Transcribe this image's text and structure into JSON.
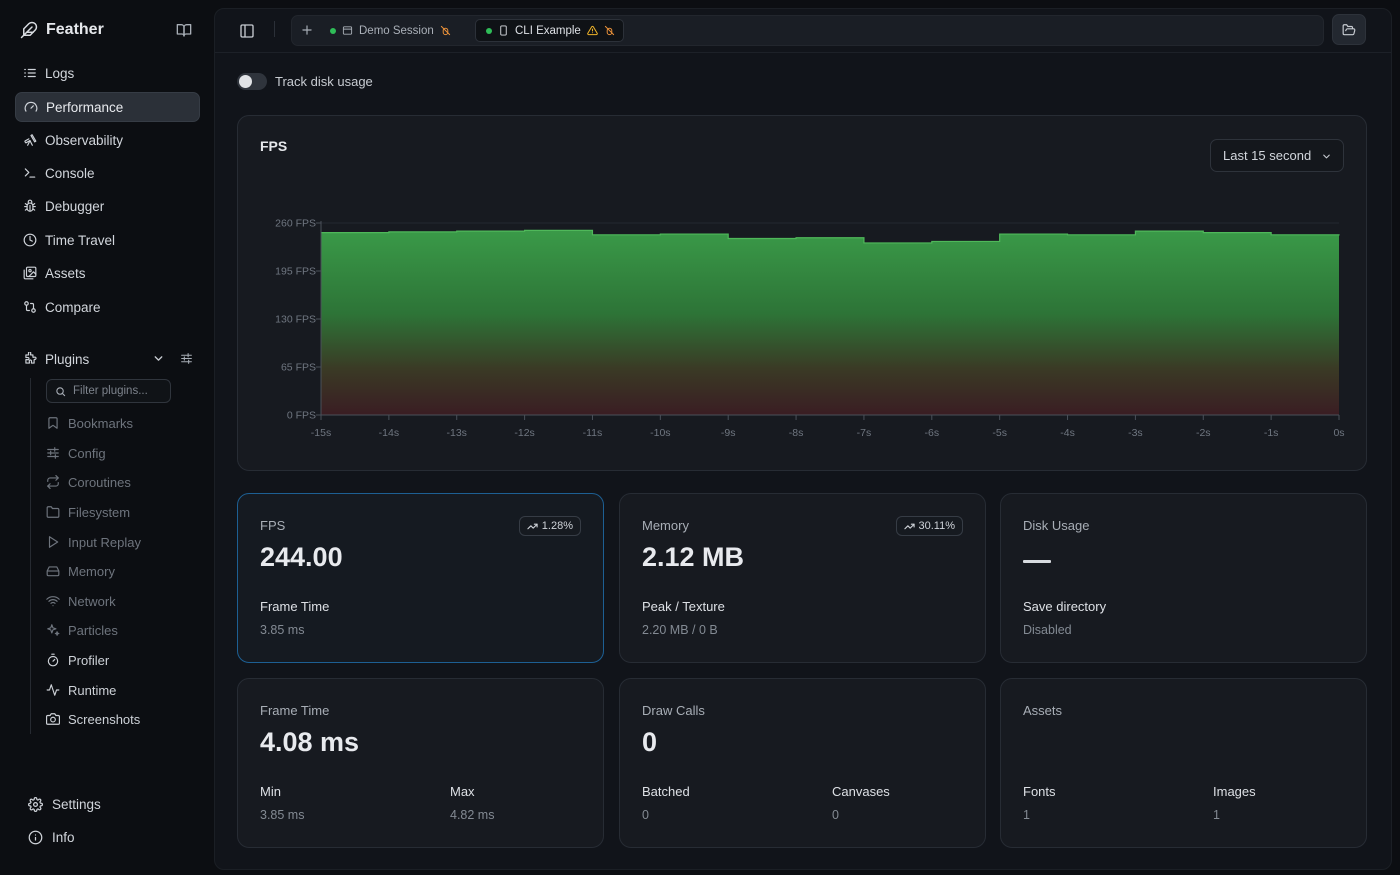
{
  "brand": {
    "name": "Feather"
  },
  "nav": [
    {
      "label": "Logs",
      "icon": "list-icon"
    },
    {
      "label": "Performance",
      "icon": "gauge-icon",
      "active": true
    },
    {
      "label": "Observability",
      "icon": "telescope-icon"
    },
    {
      "label": "Console",
      "icon": "terminal-icon"
    },
    {
      "label": "Debugger",
      "icon": "bug-icon"
    },
    {
      "label": "Time Travel",
      "icon": "clock-icon"
    },
    {
      "label": "Assets",
      "icon": "images-icon"
    },
    {
      "label": "Compare",
      "icon": "git-compare-icon"
    }
  ],
  "plugins": {
    "label": "Plugins",
    "filter_placeholder": "Filter plugins...",
    "items": [
      {
        "label": "Bookmarks",
        "icon": "bookmark-icon",
        "enabled": false
      },
      {
        "label": "Config",
        "icon": "sliders-icon",
        "enabled": false
      },
      {
        "label": "Coroutines",
        "icon": "repeat-icon",
        "enabled": false
      },
      {
        "label": "Filesystem",
        "icon": "folder-icon",
        "enabled": false
      },
      {
        "label": "Input Replay",
        "icon": "play-icon",
        "enabled": false
      },
      {
        "label": "Memory",
        "icon": "hard-drive-icon",
        "enabled": false
      },
      {
        "label": "Network",
        "icon": "wifi-icon",
        "enabled": false
      },
      {
        "label": "Particles",
        "icon": "sparkles-icon",
        "enabled": false
      },
      {
        "label": "Profiler",
        "icon": "timer-icon",
        "enabled": true
      },
      {
        "label": "Runtime",
        "icon": "activity-icon",
        "enabled": true
      },
      {
        "label": "Screenshots",
        "icon": "camera-icon",
        "enabled": true
      }
    ]
  },
  "footer": [
    {
      "label": "Settings",
      "icon": "gear-icon"
    },
    {
      "label": "Info",
      "icon": "info-icon"
    }
  ],
  "tabs": [
    {
      "label": "Demo Session",
      "icon": "window-icon",
      "status": "connected",
      "active": false
    },
    {
      "label": "CLI Example",
      "icon": "phone-icon",
      "status": "connected",
      "warning": true,
      "active": true
    }
  ],
  "toggle": {
    "label": "Track disk usage",
    "on": false
  },
  "chart": {
    "title": "FPS",
    "range": "Last 15 second"
  },
  "chart_data": {
    "type": "area",
    "x": [
      -15,
      -14,
      -13,
      -12,
      -11,
      -10,
      -9,
      -8,
      -7,
      -6,
      -5,
      -4,
      -3,
      -2,
      -1,
      0
    ],
    "x_tick_labels": [
      "-15s",
      "-14s",
      "-13s",
      "-12s",
      "-11s",
      "-10s",
      "-9s",
      "-8s",
      "-7s",
      "-6s",
      "-5s",
      "-4s",
      "-3s",
      "-2s",
      "-1s",
      "0s"
    ],
    "y": [
      247,
      248,
      249,
      250,
      244,
      245,
      239,
      240,
      233,
      235,
      245,
      244,
      249,
      247,
      244,
      243
    ],
    "ylim": [
      0,
      260
    ],
    "y_ticks": [
      0,
      65,
      130,
      195,
      260
    ],
    "y_tick_labels": [
      "0 FPS",
      "65 FPS",
      "130 FPS",
      "195 FPS",
      "260 FPS"
    ],
    "step": true,
    "colors": {
      "top": "#3a9a48",
      "bottom": "#3a1c22",
      "line": "#4fb85a"
    }
  },
  "stats": [
    {
      "label": "FPS",
      "value": "244.00",
      "badge": "1.28%",
      "subs": [
        {
          "label": "Frame Time",
          "value": "3.85 ms"
        }
      ]
    },
    {
      "label": "Memory",
      "value": "2.12 MB",
      "badge": "30.11%",
      "subs": [
        {
          "label": "Peak / Texture",
          "value": "2.20 MB / 0 B"
        }
      ]
    },
    {
      "label": "Disk Usage",
      "value": "—",
      "subs": [
        {
          "label": "Save directory",
          "value": "Disabled"
        }
      ]
    },
    {
      "label": "Frame Time",
      "value": "4.08 ms",
      "subs": [
        {
          "label": "Min",
          "value": "3.85 ms"
        },
        {
          "label": "Max",
          "value": "4.82 ms"
        }
      ]
    },
    {
      "label": "Draw Calls",
      "value": "0",
      "subs": [
        {
          "label": "Batched",
          "value": "0"
        },
        {
          "label": "Canvases",
          "value": "0"
        }
      ]
    },
    {
      "label": "Assets",
      "value": "",
      "subs": [
        {
          "label": "Fonts",
          "value": "1"
        },
        {
          "label": "Images",
          "value": "1"
        }
      ]
    }
  ]
}
